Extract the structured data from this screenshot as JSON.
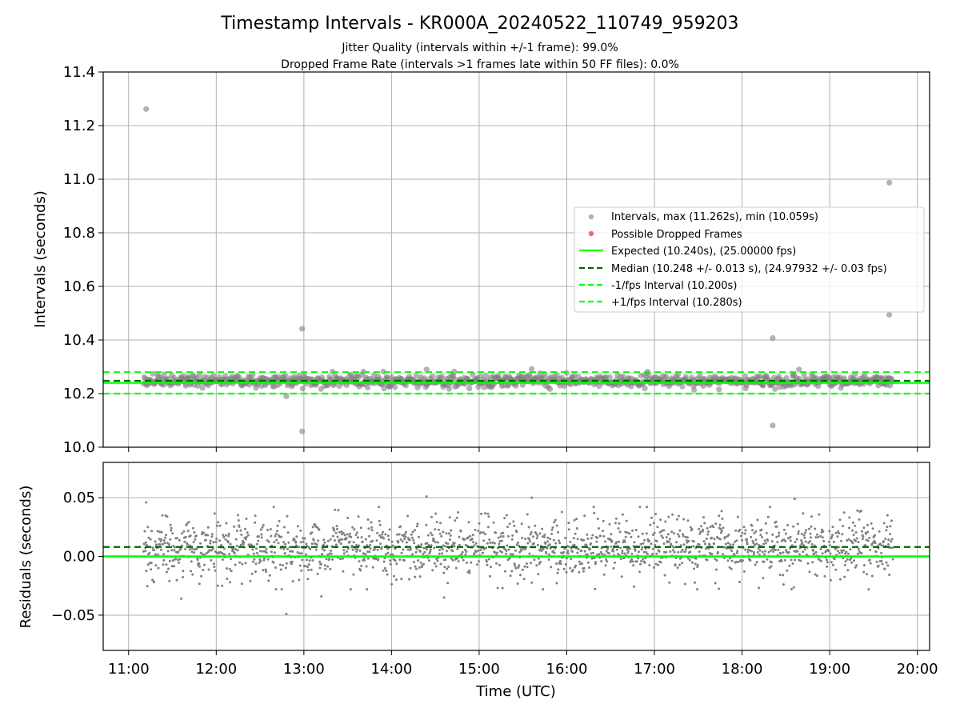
{
  "chart_data": {
    "type": "scatter",
    "title": "Timestamp Intervals - KR000A_20240522_110749_959203",
    "subtitle_lines": [
      "Jitter Quality (intervals within +/-1 frame): 99.0%",
      "Dropped Frame Rate (intervals >1 frames late within 50 FF files): 0.0%"
    ],
    "grid": true,
    "legend_position": "center-right",
    "colors": {
      "intervals": "#808080",
      "dropped": "#ff0000",
      "expected": "#00ff00",
      "median": "#006400",
      "bounds": "#00ff00"
    },
    "x_axis": {
      "label": "Time (UTC)",
      "range_hours": [
        10.71,
        20.14
      ],
      "ticks": [
        {
          "value": 11,
          "label": "11:00"
        },
        {
          "value": 12,
          "label": "12:00"
        },
        {
          "value": 13,
          "label": "13:00"
        },
        {
          "value": 14,
          "label": "14:00"
        },
        {
          "value": 15,
          "label": "15:00"
        },
        {
          "value": 16,
          "label": "16:00"
        },
        {
          "value": 17,
          "label": "17:00"
        },
        {
          "value": 18,
          "label": "18:00"
        },
        {
          "value": 19,
          "label": "19:00"
        },
        {
          "value": 20,
          "label": "20:00"
        }
      ],
      "data_range_hours": [
        11.17,
        19.72
      ]
    },
    "top_panel": {
      "ylabel": "Intervals (seconds)",
      "ylim": [
        10.0,
        11.4
      ],
      "yticks": [
        {
          "value": 10.0,
          "label": "10.0"
        },
        {
          "value": 10.2,
          "label": "10.2"
        },
        {
          "value": 10.4,
          "label": "10.4"
        },
        {
          "value": 10.6,
          "label": "10.6"
        },
        {
          "value": 10.8,
          "label": "10.8"
        },
        {
          "value": 11.0,
          "label": "11.0"
        },
        {
          "value": 11.2,
          "label": "11.2"
        },
        {
          "value": 11.4,
          "label": "11.4"
        }
      ],
      "series": [
        {
          "name": "Intervals, max (11.262s), min (10.059s)",
          "kind": "scatter"
        },
        {
          "name": "Possible Dropped Frames",
          "kind": "scatter"
        },
        {
          "name": "Expected (10.240s), (25.00000 fps)",
          "kind": "hline",
          "y": 10.24
        },
        {
          "name": "Median (10.248 +/- 0.013 s), (24.97932 +/- 0.03 fps)",
          "kind": "hline",
          "y": 10.248
        },
        {
          "name": "-1/fps Interval (10.200s)",
          "kind": "hline",
          "y": 10.2
        },
        {
          "name": "+1/fps Interval (10.280s)",
          "kind": "hline",
          "y": 10.28
        }
      ],
      "band": {
        "center": 10.248,
        "spread": 0.013
      },
      "outliers": [
        {
          "x": 11.2,
          "y": 11.262
        },
        {
          "x": 12.98,
          "y": 10.442
        },
        {
          "x": 12.98,
          "y": 10.059
        },
        {
          "x": 12.8,
          "y": 10.19
        },
        {
          "x": 18.35,
          "y": 10.407
        },
        {
          "x": 18.35,
          "y": 10.081
        },
        {
          "x": 19.68,
          "y": 10.987
        },
        {
          "x": 19.68,
          "y": 10.494
        },
        {
          "x": 18.65,
          "y": 10.29
        },
        {
          "x": 15.6,
          "y": 10.292
        },
        {
          "x": 14.4,
          "y": 10.29
        }
      ]
    },
    "bottom_panel": {
      "ylabel": "Residuals (seconds)",
      "ylim": [
        -0.08,
        0.08
      ],
      "yticks": [
        {
          "value": -0.05,
          "label": "−0.05"
        },
        {
          "value": 0.0,
          "label": "0.00"
        },
        {
          "value": 0.05,
          "label": "0.05"
        }
      ],
      "expected_line": 0.0,
      "median_line": 0.008,
      "residual_spread": 0.013,
      "outliers": [
        {
          "x": 11.2,
          "y": 0.046
        },
        {
          "x": 12.8,
          "y": -0.049
        },
        {
          "x": 11.6,
          "y": -0.036
        },
        {
          "x": 14.4,
          "y": 0.051
        },
        {
          "x": 15.6,
          "y": 0.05
        },
        {
          "x": 18.6,
          "y": 0.049
        },
        {
          "x": 14.6,
          "y": -0.035
        },
        {
          "x": 13.2,
          "y": -0.034
        }
      ]
    }
  }
}
